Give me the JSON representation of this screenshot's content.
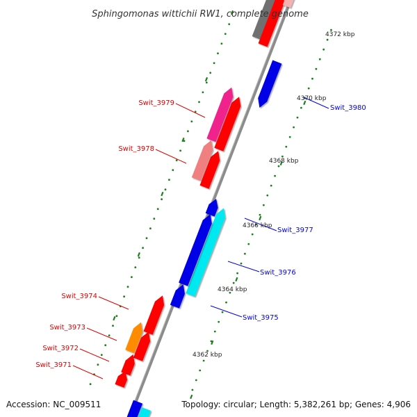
{
  "title": "Sphingomonas wittichii RW1, complete genome",
  "footer": {
    "accession": "Accession: NC_009511",
    "summary": "Topology: circular; Length: 5,382,261 bp; Genes: 4,906"
  },
  "ticks": [
    "4372 kbp",
    "4370 kbp",
    "4368 kbp",
    "4366 kbp",
    "4364 kbp",
    "4362 kbp"
  ],
  "colors": {
    "backbone": "#8c8c8c",
    "tick_mark": "#1e7f1e",
    "forward_gene": "#ff0000",
    "reverse_gene": "#0000e6",
    "cyan_gene": "#00e8f0",
    "pink_gene": "#f0208c",
    "salmon_gene": "#f08080",
    "orange_gene": "#ff8c00",
    "grey_gene": "#707070"
  },
  "gene_labels": {
    "left": [
      "Swit_3979",
      "Swit_3978",
      "Swit_3974",
      "Swit_3973",
      "Swit_3972",
      "Swit_3971"
    ],
    "right": [
      "Swit_3980",
      "Swit_3977",
      "Swit_3976",
      "Swit_3975"
    ]
  }
}
